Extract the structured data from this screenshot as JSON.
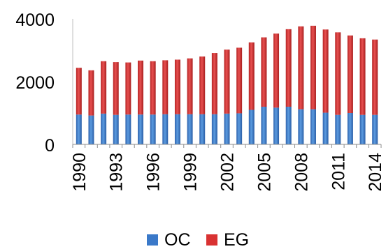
{
  "chart_data": {
    "type": "bar",
    "stacked": true,
    "categories": [
      "1990",
      "1991",
      "1992",
      "1993",
      "1994",
      "1995",
      "1996",
      "1997",
      "1998",
      "1999",
      "2000",
      "2001",
      "2002",
      "2003",
      "2004",
      "2005",
      "2006",
      "2007",
      "2008",
      "2009",
      "2010",
      "2011",
      "2012",
      "2013",
      "2014"
    ],
    "x_tick_labels": [
      "1990",
      "1993",
      "1996",
      "1999",
      "2002",
      "2005",
      "2008",
      "2011",
      "2014"
    ],
    "y_tick_labels": [
      "0",
      "2000",
      "4000"
    ],
    "ylim": [
      0,
      4000
    ],
    "grid": false,
    "legend_position": "bottom",
    "series": [
      {
        "name": "OC",
        "color": "#3a79c9",
        "values": [
          950,
          920,
          980,
          940,
          950,
          950,
          950,
          960,
          960,
          960,
          960,
          960,
          980,
          990,
          1100,
          1200,
          1170,
          1200,
          1120,
          1120,
          1010,
          940,
          1000,
          940,
          940
        ]
      },
      {
        "name": "EG",
        "color": "#d93232",
        "values": [
          1490,
          1440,
          1670,
          1680,
          1660,
          1720,
          1700,
          1720,
          1740,
          1780,
          1840,
          1950,
          2040,
          2090,
          2150,
          2210,
          2360,
          2470,
          2640,
          2660,
          2650,
          2630,
          2470,
          2440,
          2400
        ]
      }
    ],
    "title": "",
    "xlabel": "",
    "ylabel": ""
  }
}
